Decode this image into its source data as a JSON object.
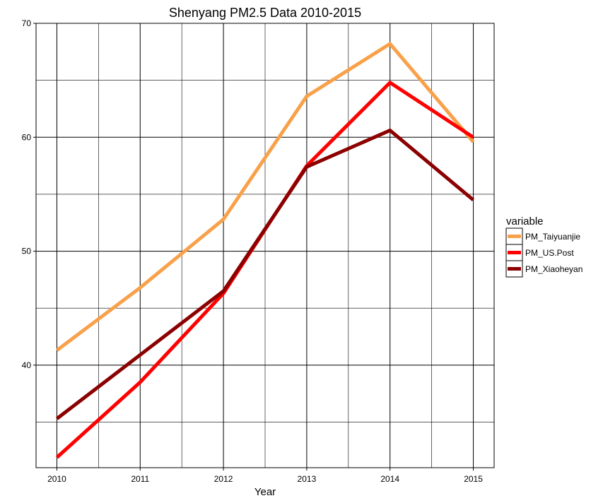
{
  "chart_data": {
    "type": "line",
    "title": "Shenyang PM2.5 Data 2010-2015",
    "xlabel": "Year",
    "ylabel": "",
    "x": [
      2010,
      2011,
      2012,
      2013,
      2014,
      2015
    ],
    "x_ticks": [
      "2010",
      "2011",
      "2012",
      "2013",
      "2014",
      "2015"
    ],
    "y_ticks": [
      "40",
      "50",
      "60",
      "70"
    ],
    "xlim": [
      2009.75,
      2015.25
    ],
    "ylim": [
      31,
      70
    ],
    "grid": true,
    "legend": {
      "title": "variable",
      "position": "right"
    },
    "series": [
      {
        "name": "PM_Taiyuanjie",
        "color": "#F8A14A",
        "values": [
          41.3,
          46.8,
          52.8,
          63.6,
          68.2,
          59.6
        ]
      },
      {
        "name": "PM_US.Post",
        "color": "#FF0000",
        "values": [
          31.9,
          38.5,
          46.3,
          57.5,
          64.8,
          60.0
        ]
      },
      {
        "name": "PM_Xiaoheyan",
        "color": "#8B0000",
        "values": [
          35.3,
          40.9,
          46.5,
          57.4,
          60.6,
          54.5
        ]
      }
    ]
  }
}
